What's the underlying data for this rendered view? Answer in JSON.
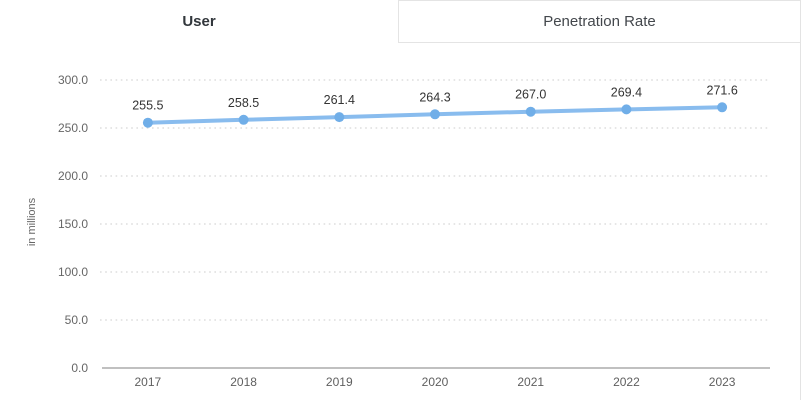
{
  "tabs": [
    {
      "label": "User",
      "active": true
    },
    {
      "label": "Penetration Rate",
      "active": false
    }
  ],
  "chart_data": {
    "type": "line",
    "title": "",
    "categories": [
      "2017",
      "2018",
      "2019",
      "2020",
      "2021",
      "2022",
      "2023"
    ],
    "series": [
      {
        "name": "User",
        "values": [
          255.5,
          258.5,
          261.4,
          264.3,
          267.0,
          269.4,
          271.6
        ]
      }
    ],
    "data_labels": [
      "255.5",
      "258.5",
      "261.4",
      "264.3",
      "267.0",
      "269.4",
      "271.6"
    ],
    "xlabel": "",
    "ylabel": "in millions",
    "ylim": [
      0,
      300
    ],
    "ytick_step": 50,
    "ytick_labels": [
      "0.0",
      "50.0",
      "100.0",
      "150.0",
      "200.0",
      "250.0",
      "300.0"
    ],
    "grid": "horizontal-dotted",
    "legend_position": "none",
    "colors": {
      "line": "#7cb5ec",
      "marker": "#70aee8",
      "gridline": "#d6d6d6",
      "axis_line": "#ababab",
      "ytick_text": "#666666",
      "xtick_text": "#5f5f5f",
      "data_label_text": "#333333",
      "ylabel_text": "#666666",
      "tab_border": "#e4e4e4"
    }
  }
}
